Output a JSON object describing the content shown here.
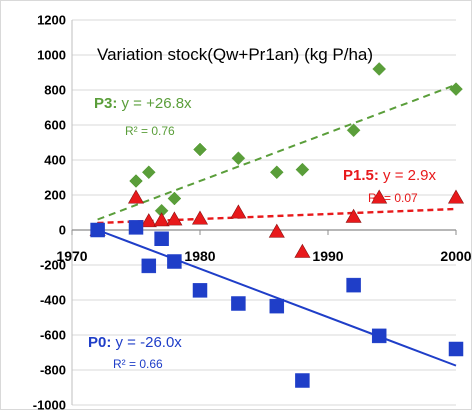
{
  "chart_data": {
    "type": "scatter",
    "title": "Variation stock(Qw+Pr1an) (kg P/ha)",
    "xlim": [
      1970,
      2000
    ],
    "ylim": [
      -1000,
      1200
    ],
    "x_ticks": [
      "1970",
      "1980",
      "1990",
      "2000"
    ],
    "y_ticks": [
      "1200",
      "1000",
      "800",
      "600",
      "400",
      "200",
      "0",
      "-200",
      "-400",
      "-600",
      "-800",
      "-1000"
    ],
    "grid": "horizontal",
    "series": [
      {
        "name": "P3",
        "marker": "diamond",
        "color": "#5A9E3A",
        "points": [
          [
            1975,
            280
          ],
          [
            1976,
            330
          ],
          [
            1977,
            110
          ],
          [
            1978,
            180
          ],
          [
            1980,
            460
          ],
          [
            1983,
            410
          ],
          [
            1986,
            330
          ],
          [
            1988,
            345
          ],
          [
            1992,
            570
          ],
          [
            1994,
            920
          ],
          [
            2000,
            805
          ]
        ],
        "equation": "y = +26.8x",
        "r2": "R² = 0.76",
        "trend": {
          "x": [
            1972,
            2000
          ],
          "y": [
            60,
            830
          ]
        }
      },
      {
        "name": "P1.5",
        "marker": "triangle",
        "color": "#E8191B",
        "points": [
          [
            1972,
            0
          ],
          [
            1975,
            185
          ],
          [
            1976,
            50
          ],
          [
            1977,
            55
          ],
          [
            1978,
            60
          ],
          [
            1980,
            65
          ],
          [
            1983,
            100
          ],
          [
            1986,
            -10
          ],
          [
            1988,
            -125
          ],
          [
            1992,
            75
          ],
          [
            1994,
            185
          ],
          [
            2000,
            185
          ]
        ],
        "equation": "y = 2.9x",
        "r2": "R² = 0.07",
        "trend": {
          "x": [
            1972,
            2000
          ],
          "y": [
            40,
            120
          ]
        }
      },
      {
        "name": "P0",
        "marker": "square",
        "color": "#1F3EC8",
        "points": [
          [
            1972,
            0
          ],
          [
            1975,
            15
          ],
          [
            1976,
            -205
          ],
          [
            1977,
            -50
          ],
          [
            1978,
            -180
          ],
          [
            1980,
            -345
          ],
          [
            1983,
            -420
          ],
          [
            1986,
            -435
          ],
          [
            1988,
            -860
          ],
          [
            1992,
            -315
          ],
          [
            1994,
            -605
          ],
          [
            2000,
            -680
          ]
        ],
        "equation": "y = -26.0x",
        "r2": "R² = 0.66",
        "trend": {
          "x": [
            1972,
            2000
          ],
          "y": [
            0,
            -775
          ]
        }
      }
    ]
  },
  "labels": {
    "title": "Variation stock(Qw+Pr1an) (kg P/ha)",
    "p3_name": "P3:",
    "p3_eq": " y = +26.8x",
    "p3_r2": "R² = 0.76",
    "p15_name": "P1.5:",
    "p15_eq": " y = 2.9x",
    "p15_r2": "R² = 0.07",
    "p0_name": "P0:",
    "p0_eq": " y = -26.0x",
    "p0_r2": "R² = 0.66"
  }
}
